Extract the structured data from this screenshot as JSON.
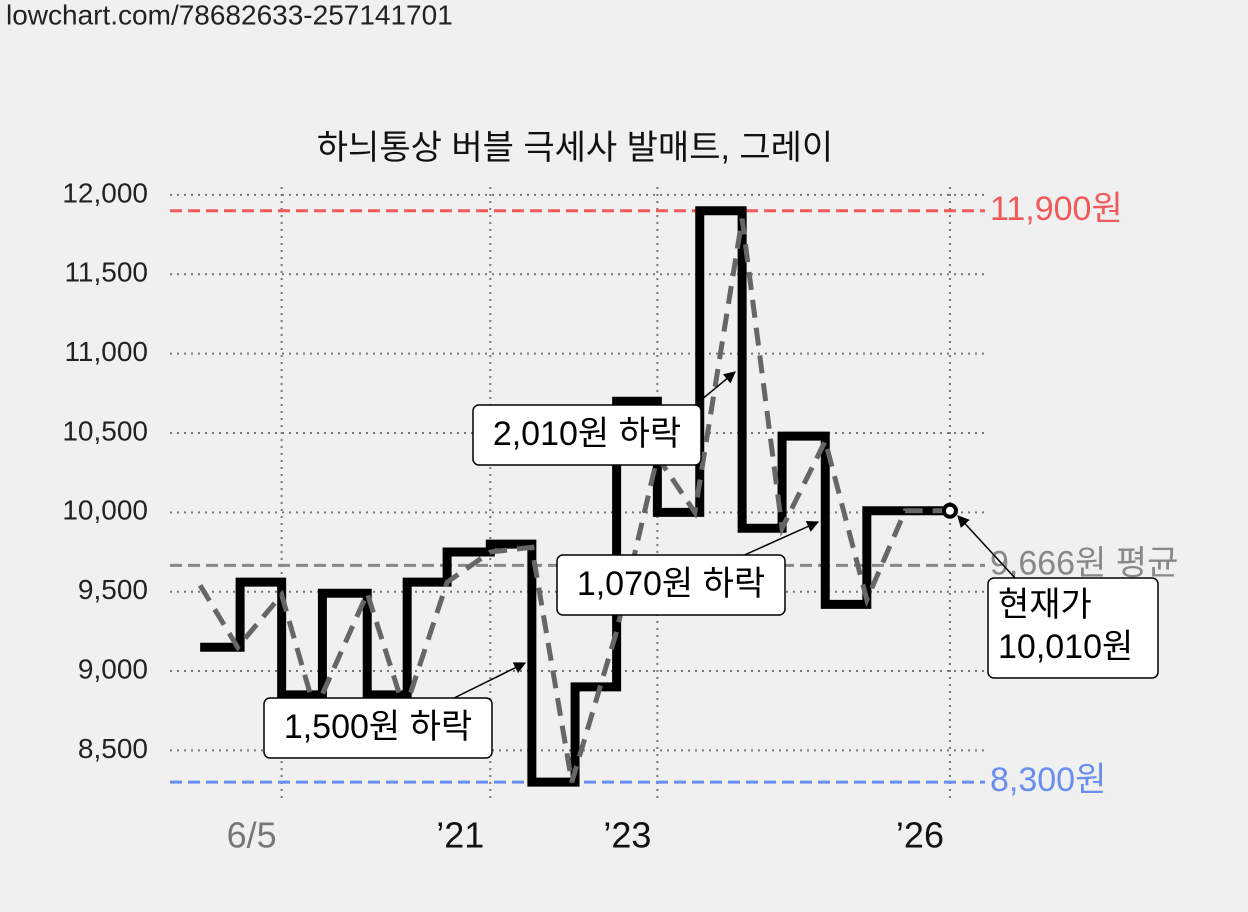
{
  "url": "lowchart.com/78682633-257141701",
  "chart_data": {
    "type": "step-line",
    "title": "하늬통상 버블 극세사 발매트, 그레이",
    "xlim": [
      0,
      100
    ],
    "xticks": [
      {
        "value": 13.7,
        "label": "6/5"
      },
      {
        "value": 39.3,
        "label": "’21"
      },
      {
        "value": 59.8,
        "label": "’23"
      },
      {
        "value": 95.7,
        "label": "’26"
      }
    ],
    "ylim": [
      8200,
      12050
    ],
    "yticks": [
      {
        "value": 8500,
        "label": "8,500"
      },
      {
        "value": 9000,
        "label": "9,000"
      },
      {
        "value": 9500,
        "label": "9,500"
      },
      {
        "value": 10000,
        "label": "10,000"
      },
      {
        "value": 10500,
        "label": "10,500"
      },
      {
        "value": 11000,
        "label": "11,000"
      },
      {
        "value": 11500,
        "label": "11,500"
      },
      {
        "value": 12000,
        "label": "12,000"
      }
    ],
    "grid": true,
    "series": [
      {
        "color": "#000000",
        "x": [
          3.7,
          8.6,
          13.7,
          18.7,
          24.2,
          29.1,
          34.0,
          39.3,
          44.4,
          49.7,
          54.8,
          59.8,
          65.0,
          70.2,
          75.1,
          80.4,
          85.5,
          95.7
        ],
        "values": [
          9150,
          9560,
          8850,
          9490,
          8850,
          9560,
          9750,
          9800,
          8300,
          8900,
          10700,
          10000,
          11900,
          9900,
          10480,
          9420,
          10010,
          10010
        ]
      },
      {
        "color": "#666666",
        "x": [
          3.7,
          8.3,
          13.7,
          17.8,
          24.2,
          28.8,
          34.0,
          39.3,
          44.4,
          49.3,
          54.8,
          59.8,
          64.4,
          70.2,
          75.1,
          80.4,
          85.5,
          90.2,
          95.7
        ],
        "values": [
          9540,
          9150,
          9480,
          8750,
          9490,
          8750,
          9560,
          9750,
          9780,
          8300,
          9250,
          10350,
          10000,
          11850,
          9900,
          10450,
          9450,
          10010,
          10010
        ]
      }
    ],
    "reference_lines": [
      {
        "value": 11900,
        "label": "11,900원",
        "color": "#f05a5a"
      },
      {
        "value": 9666,
        "label": "9,666원 평균",
        "color": "#888888"
      },
      {
        "value": 8300,
        "label": "8,300원",
        "color": "#6a8ef0"
      }
    ],
    "annotations": [
      "2,010원 하락",
      "1,070원 하락",
      "1,500원 하락"
    ],
    "current_label": [
      "현재가",
      "10,010원"
    ]
  }
}
